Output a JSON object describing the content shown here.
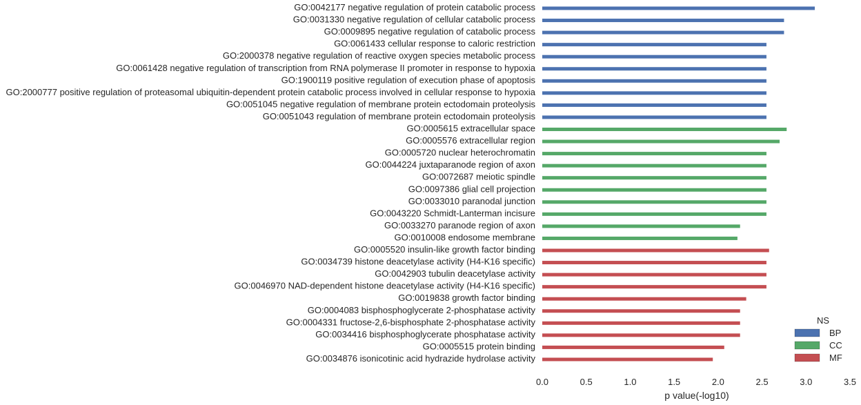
{
  "chart_data": {
    "type": "bar",
    "orientation": "horizontal",
    "xlabel": "p value(-log10)",
    "ylabel": "",
    "title": "",
    "xlim": [
      0,
      3.5
    ],
    "xticks": [
      0.0,
      0.5,
      1.0,
      1.5,
      2.0,
      2.5,
      3.0,
      3.5
    ],
    "xtick_labels": [
      "0.0",
      "0.5",
      "1.0",
      "1.5",
      "2.0",
      "2.5",
      "3.0",
      "3.5"
    ],
    "grid": false,
    "legend": {
      "title": "NS",
      "placement": "lower-right",
      "entries": [
        {
          "name": "BP",
          "color": "#4c72b0"
        },
        {
          "name": "CC",
          "color": "#55a868"
        },
        {
          "name": "MF",
          "color": "#c44e52"
        }
      ]
    },
    "categories": [
      {
        "label": "GO:0042177 negative regulation of protein catabolic process",
        "ns": "BP",
        "value": 3.1
      },
      {
        "label": "GO:0031330 negative regulation of cellular catabolic process",
        "ns": "BP",
        "value": 2.75
      },
      {
        "label": "GO:0009895 negative regulation of catabolic process",
        "ns": "BP",
        "value": 2.75
      },
      {
        "label": "GO:0061433 cellular response to caloric restriction",
        "ns": "BP",
        "value": 2.55
      },
      {
        "label": "GO:2000378 negative regulation of reactive oxygen species metabolic process",
        "ns": "BP",
        "value": 2.55
      },
      {
        "label": "GO:0061428 negative regulation of transcription from RNA polymerase II promoter in response to hypoxia",
        "ns": "BP",
        "value": 2.55
      },
      {
        "label": "GO:1900119 positive regulation of execution phase of apoptosis",
        "ns": "BP",
        "value": 2.55
      },
      {
        "label": "GO:2000777 positive regulation of proteasomal ubiquitin-dependent protein catabolic process involved in cellular response to hypoxia",
        "ns": "BP",
        "value": 2.55
      },
      {
        "label": "GO:0051045 negative regulation of membrane protein ectodomain proteolysis",
        "ns": "BP",
        "value": 2.55
      },
      {
        "label": "GO:0051043 regulation of membrane protein ectodomain proteolysis",
        "ns": "BP",
        "value": 2.55
      },
      {
        "label": "GO:0005615 extracellular space",
        "ns": "CC",
        "value": 2.78
      },
      {
        "label": "GO:0005576 extracellular region",
        "ns": "CC",
        "value": 2.7
      },
      {
        "label": "GO:0005720 nuclear heterochromatin",
        "ns": "CC",
        "value": 2.55
      },
      {
        "label": "GO:0044224 juxtaparanode region of axon",
        "ns": "CC",
        "value": 2.55
      },
      {
        "label": "GO:0072687 meiotic spindle",
        "ns": "CC",
        "value": 2.55
      },
      {
        "label": "GO:0097386 glial cell projection",
        "ns": "CC",
        "value": 2.55
      },
      {
        "label": "GO:0033010 paranodal junction",
        "ns": "CC",
        "value": 2.55
      },
      {
        "label": "GO:0043220 Schmidt-Lanterman incisure",
        "ns": "CC",
        "value": 2.55
      },
      {
        "label": "GO:0033270 paranode region of axon",
        "ns": "CC",
        "value": 2.25
      },
      {
        "label": "GO:0010008 endosome membrane",
        "ns": "CC",
        "value": 2.22
      },
      {
        "label": "GO:0005520 insulin-like growth factor binding",
        "ns": "MF",
        "value": 2.58
      },
      {
        "label": "GO:0034739 histone deacetylase activity (H4-K16 specific)",
        "ns": "MF",
        "value": 2.55
      },
      {
        "label": "GO:0042903 tubulin deacetylase activity",
        "ns": "MF",
        "value": 2.55
      },
      {
        "label": "GO:0046970 NAD-dependent histone deacetylase activity (H4-K16 specific)",
        "ns": "MF",
        "value": 2.55
      },
      {
        "label": "GO:0019838 growth factor binding",
        "ns": "MF",
        "value": 2.32
      },
      {
        "label": "GO:0004083 bisphosphoglycerate 2-phosphatase activity",
        "ns": "MF",
        "value": 2.25
      },
      {
        "label": "GO:0004331 fructose-2,6-bisphosphate 2-phosphatase activity",
        "ns": "MF",
        "value": 2.25
      },
      {
        "label": "GO:0034416 bisphosphoglycerate phosphatase activity",
        "ns": "MF",
        "value": 2.25
      },
      {
        "label": "GO:0005515 protein binding",
        "ns": "MF",
        "value": 2.07
      },
      {
        "label": "GO:0034876 isonicotinic acid hydrazide hydrolase activity",
        "ns": "MF",
        "value": 1.94
      }
    ]
  }
}
